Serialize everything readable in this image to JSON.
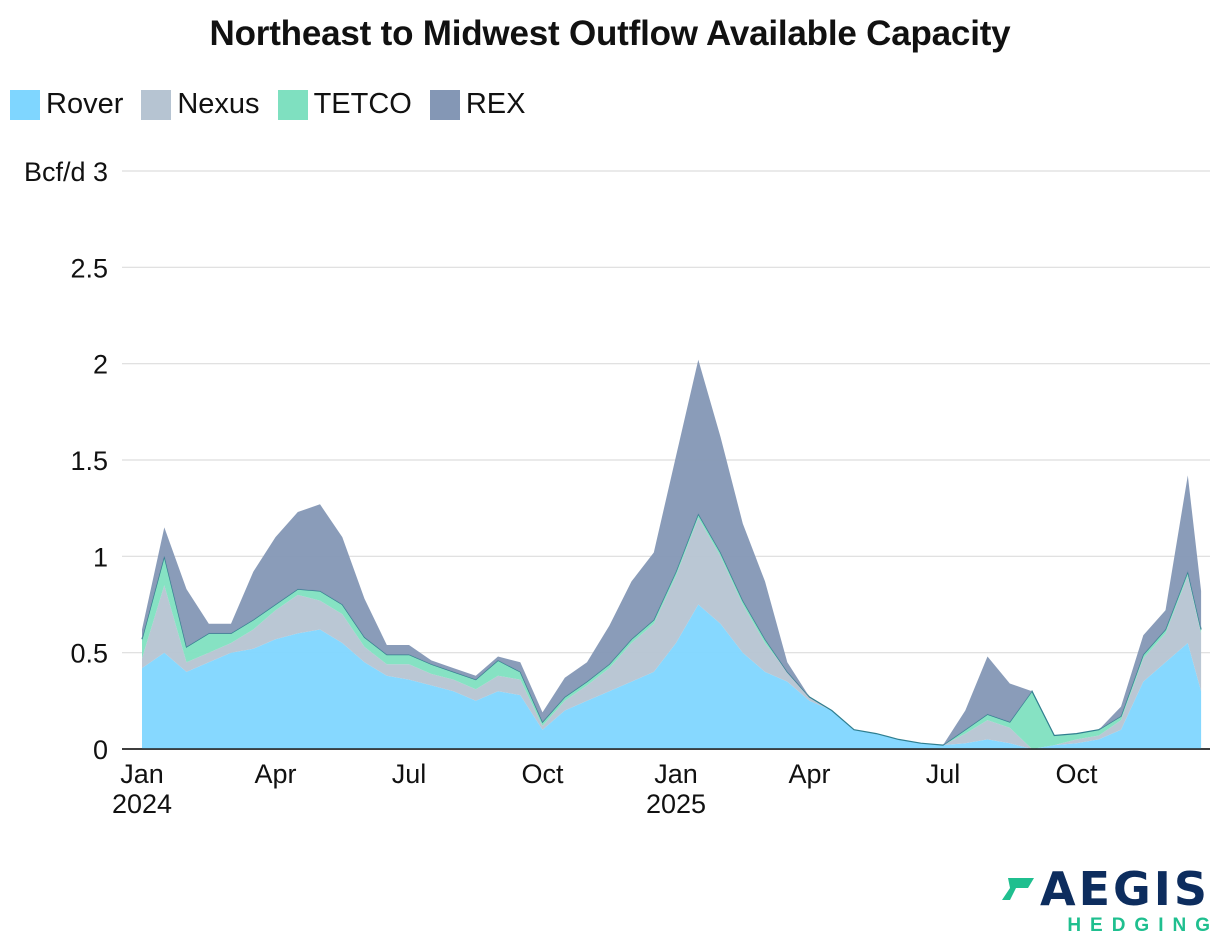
{
  "title": "Northeast to Midwest Outflow Available Capacity",
  "legend": [
    {
      "label": "Rover",
      "color": "#7fd6ff"
    },
    {
      "label": "Nexus",
      "color": "#b6c4d2"
    },
    {
      "label": "TETCO",
      "color": "#7fe0c0"
    },
    {
      "label": "REX",
      "color": "#8497b5"
    }
  ],
  "logo": {
    "word": "AEGIS",
    "sub": "HEDGING",
    "accent": "#1fbf8f",
    "brand": "#0d2d5e"
  },
  "chart_data": {
    "type": "area",
    "stacked": true,
    "title": "Northeast to Midwest Outflow Available Capacity",
    "ylabel": "Bcf/d",
    "ylim": [
      0,
      3
    ],
    "yticks": [
      0,
      0.5,
      1,
      1.5,
      2,
      2.5,
      3
    ],
    "ytick_labels": [
      "0",
      "0.5",
      "1",
      "1.5",
      "2",
      "2.5",
      "Bcf/d 3"
    ],
    "xlim": [
      0,
      24
    ],
    "xticks": [
      {
        "value": 0,
        "label": "Jan",
        "sublabel": "2024"
      },
      {
        "value": 3,
        "label": "Apr",
        "sublabel": ""
      },
      {
        "value": 6,
        "label": "Jul",
        "sublabel": ""
      },
      {
        "value": 9,
        "label": "Oct",
        "sublabel": ""
      },
      {
        "value": 12,
        "label": "Jan",
        "sublabel": "2025"
      },
      {
        "value": 15,
        "label": "Apr",
        "sublabel": ""
      },
      {
        "value": 18,
        "label": "Jul",
        "sublabel": ""
      },
      {
        "value": 21,
        "label": "Oct",
        "sublabel": ""
      }
    ],
    "legend_position": "top-left",
    "grid": true,
    "x": [
      0,
      0.5,
      1,
      1.5,
      2,
      2.5,
      3,
      3.5,
      4,
      4.5,
      5,
      5.5,
      6,
      6.5,
      7,
      7.5,
      8,
      8.5,
      9,
      9.5,
      10,
      10.5,
      11,
      11.5,
      12,
      12.5,
      13,
      13.5,
      14,
      14.5,
      15,
      15.5,
      16,
      16.5,
      17,
      17.5,
      18,
      18.5,
      19,
      19.5,
      20,
      20.5,
      21,
      21.5,
      22,
      22.5,
      23,
      23.5,
      23.8
    ],
    "series": [
      {
        "name": "Rover",
        "color": "#7fd6ff",
        "values": [
          0.42,
          0.5,
          0.4,
          0.45,
          0.5,
          0.52,
          0.57,
          0.6,
          0.62,
          0.55,
          0.45,
          0.38,
          0.36,
          0.33,
          0.3,
          0.25,
          0.3,
          0.28,
          0.1,
          0.2,
          0.25,
          0.3,
          0.35,
          0.4,
          0.55,
          0.75,
          0.65,
          0.5,
          0.4,
          0.35,
          0.25,
          0.2,
          0.1,
          0.08,
          0.05,
          0.03,
          0.02,
          0.03,
          0.05,
          0.03,
          0.0,
          0.02,
          0.03,
          0.05,
          0.1,
          0.35,
          0.45,
          0.55,
          0.3
        ]
      },
      {
        "name": "Nexus",
        "color": "#b6c4d2",
        "values": [
          0.05,
          0.35,
          0.05,
          0.05,
          0.05,
          0.1,
          0.15,
          0.2,
          0.15,
          0.15,
          0.08,
          0.06,
          0.08,
          0.06,
          0.06,
          0.06,
          0.08,
          0.08,
          0.02,
          0.05,
          0.08,
          0.12,
          0.2,
          0.25,
          0.35,
          0.45,
          0.35,
          0.25,
          0.15,
          0.05,
          0.02,
          0.0,
          0.0,
          0.0,
          0.0,
          0.0,
          0.0,
          0.05,
          0.1,
          0.08,
          0.0,
          0.0,
          0.02,
          0.02,
          0.05,
          0.12,
          0.15,
          0.35,
          0.3
        ]
      },
      {
        "name": "TETCO",
        "color": "#7fe0c0",
        "values": [
          0.1,
          0.15,
          0.08,
          0.1,
          0.05,
          0.05,
          0.03,
          0.03,
          0.05,
          0.05,
          0.05,
          0.05,
          0.05,
          0.05,
          0.04,
          0.05,
          0.08,
          0.04,
          0.02,
          0.02,
          0.02,
          0.02,
          0.02,
          0.02,
          0.02,
          0.02,
          0.02,
          0.02,
          0.02,
          0.0,
          0.0,
          0.0,
          0.0,
          0.0,
          0.0,
          0.0,
          0.0,
          0.02,
          0.03,
          0.03,
          0.3,
          0.05,
          0.03,
          0.03,
          0.02,
          0.02,
          0.02,
          0.02,
          0.02
        ]
      },
      {
        "name": "REX",
        "color": "#8497b5",
        "values": [
          0.05,
          0.15,
          0.3,
          0.05,
          0.05,
          0.25,
          0.35,
          0.4,
          0.45,
          0.35,
          0.2,
          0.05,
          0.05,
          0.02,
          0.02,
          0.02,
          0.02,
          0.05,
          0.05,
          0.1,
          0.1,
          0.2,
          0.3,
          0.35,
          0.6,
          0.8,
          0.6,
          0.4,
          0.3,
          0.05,
          0.0,
          0.0,
          0.0,
          0.0,
          0.0,
          0.0,
          0.0,
          0.1,
          0.3,
          0.2,
          0.0,
          0.0,
          0.0,
          0.0,
          0.05,
          0.1,
          0.1,
          0.5,
          0.2
        ]
      }
    ]
  }
}
